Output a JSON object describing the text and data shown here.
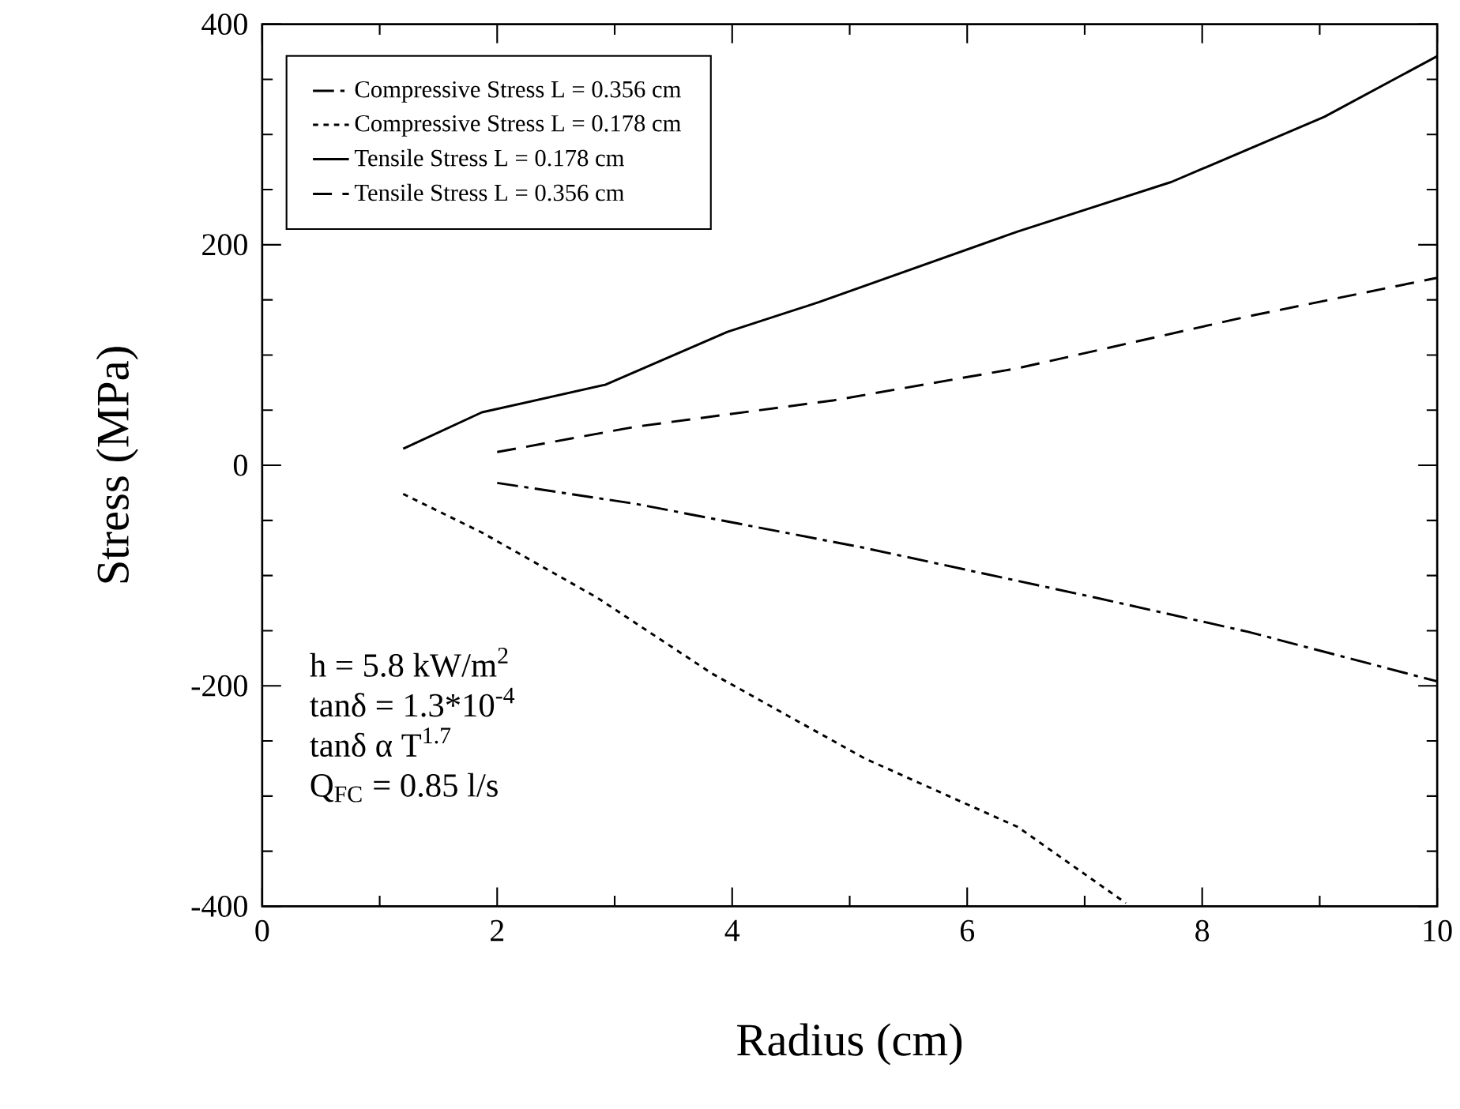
{
  "chart_data": {
    "type": "line",
    "xlabel": "Radius (cm)",
    "ylabel": "Stress (MPa)",
    "xlim": [
      0,
      10
    ],
    "ylim": [
      -400,
      400
    ],
    "xticks": [
      0,
      2,
      4,
      6,
      8,
      10
    ],
    "yticks": [
      -400,
      -200,
      0,
      200,
      400
    ],
    "legend": "top left",
    "grid": false,
    "series": [
      {
        "name": "Compressive Stress L = 0.356 cm",
        "color": "#000000",
        "line_style": "dashdot",
        "x": [
          2.0,
          3.18,
          5.13,
          7.09,
          8.39,
          10
        ],
        "values": [
          -16,
          -35,
          -75,
          -120,
          -151,
          -196
        ]
      },
      {
        "name": "Compressive Stress L = 0.178 cm",
        "color": "#000000",
        "line_style": "dotted",
        "x": [
          1.2,
          1.87,
          2.85,
          3.83,
          5.13,
          6.43,
          7.35
        ],
        "values": [
          -26,
          -61,
          -120,
          -189,
          -266,
          -328,
          -397
        ]
      },
      {
        "name": "Tensile Stress L = 0.178 cm",
        "color": "#000000",
        "line_style": "solid",
        "x": [
          1.2,
          1.87,
          2.92,
          3.96,
          4.74,
          6.43,
          7.74,
          9.04,
          10
        ],
        "values": [
          15,
          48,
          73,
          121,
          148,
          212,
          257,
          316,
          371
        ]
      },
      {
        "name": "Tensile Stress L = 0.356 cm",
        "color": "#000000",
        "line_style": "dashed",
        "x": [
          2.0,
          3.18,
          4.87,
          6.43,
          8.39,
          10
        ],
        "values": [
          12,
          35,
          59,
          88,
          135,
          170
        ]
      }
    ],
    "annotations": [
      "h = 5.8 kW/m$^{2}$",
      "tanδ = 1.3*10$^{-4}$",
      "tanδ α T$^{1.7}$",
      "Q$_{FC}$ = 0.85 l/s"
    ]
  }
}
